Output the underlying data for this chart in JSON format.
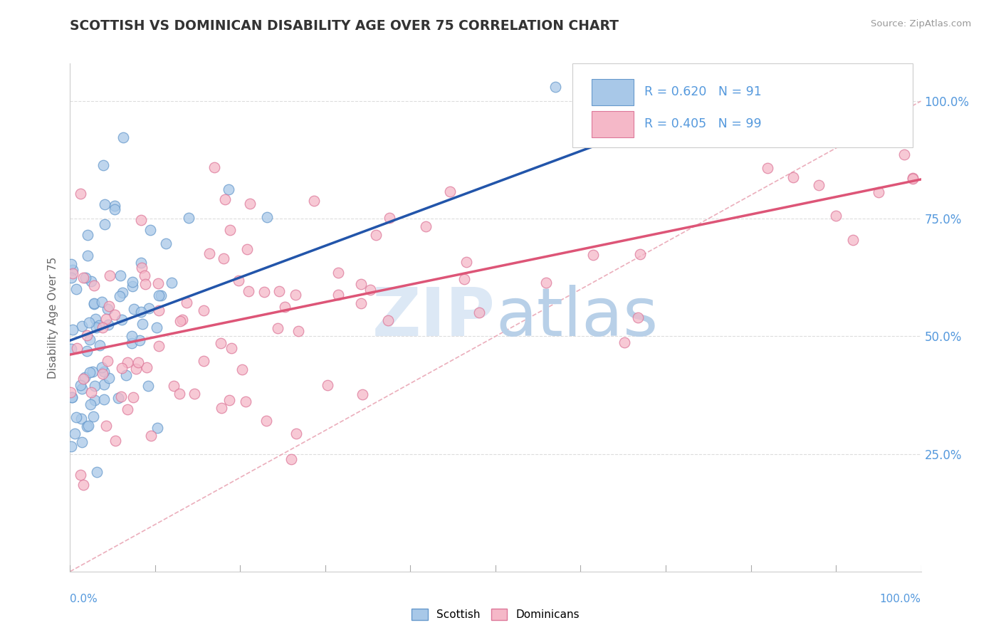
{
  "title": "SCOTTISH VS DOMINICAN DISABILITY AGE OVER 75 CORRELATION CHART",
  "source": "Source: ZipAtlas.com",
  "ylabel": "Disability Age Over 75",
  "r_scottish": 0.62,
  "n_scottish": 91,
  "r_dominican": 0.405,
  "n_dominican": 99,
  "scottish_color": "#a8c8e8",
  "scottish_edge": "#6699cc",
  "dominican_color": "#f5b8c8",
  "dominican_edge": "#dd7799",
  "regression_scottish_color": "#2255aa",
  "regression_dominican_color": "#dd5577",
  "diagonal_color": "#e8a0b0",
  "background": "#ffffff",
  "grid_color": "#dddddd",
  "tick_color": "#5599dd",
  "xlim": [
    0.0,
    1.0
  ],
  "ylim": [
    0.0,
    1.08
  ],
  "ytick_vals": [
    0.25,
    0.5,
    0.75,
    1.0
  ],
  "ytick_labels": [
    "25.0%",
    "50.0%",
    "75.0%",
    "100.0%"
  ]
}
